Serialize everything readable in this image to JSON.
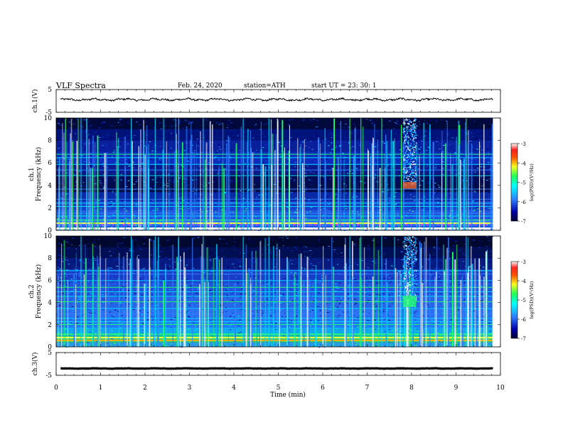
{
  "header": {
    "title": "VLF  Spectra",
    "date": "Feb. 24, 2020",
    "station": "station=ATH",
    "start": "start  UT  =    23: 30: 1"
  },
  "chart_data": [
    {
      "type": "line",
      "panel": "ch1-waveform",
      "ylabel": "ch.1(V)",
      "ylim": [
        -5,
        5
      ],
      "yticks": [
        "5",
        "-5"
      ],
      "xlim": [
        0,
        10
      ],
      "series": [
        {
          "values_level": 0.6,
          "amplitude": 0.6
        }
      ],
      "color": "#000000"
    },
    {
      "type": "heatmap",
      "panel": "ch1-spectrogram",
      "ylabel": "ch.1\nFrequency  (kHz)",
      "ylabel_lines": [
        "ch.1",
        "Frequency  (kHz)"
      ],
      "ylim": [
        0,
        10
      ],
      "yticks": [
        "0",
        "2",
        "4",
        "6",
        "8",
        "10"
      ],
      "xlim": [
        0,
        10
      ],
      "data_end_min": 9.83,
      "burst_time_min": [
        7.8,
        8.1
      ],
      "colorbar": {
        "label": "log(PSD)(V²/Hz)",
        "ticks": [
          "-3",
          "-4",
          "-5",
          "-6",
          "-7"
        ]
      }
    },
    {
      "type": "heatmap",
      "panel": "ch2-spectrogram",
      "ylabel": "ch.2\nFrequency  (kHz)",
      "ylabel_lines": [
        "ch.2",
        "Frequency  (kHz)"
      ],
      "ylim": [
        0,
        10
      ],
      "yticks": [
        "0",
        "2",
        "4",
        "6",
        "8",
        "10"
      ],
      "xlim": [
        0,
        10
      ],
      "data_end_min": 9.83,
      "burst_time_min": [
        7.8,
        8.1
      ],
      "colorbar": {
        "label": "log(PSD)(V²/Hz)",
        "ticks": [
          "-3",
          "-4",
          "-5",
          "-6",
          "-7"
        ]
      }
    },
    {
      "type": "line",
      "panel": "ch3-waveform",
      "ylabel": "ch.3(V)",
      "ylim": [
        -5,
        5
      ],
      "yticks": [
        "5",
        "-5"
      ],
      "xlim": [
        0,
        10
      ],
      "series": [
        {
          "values_level": -2.0,
          "amplitude": 0.1
        }
      ],
      "color": "#000000"
    }
  ],
  "xaxis": {
    "label": "Time  (min)",
    "ticks": [
      "0",
      "1",
      "2",
      "3",
      "4",
      "5",
      "6",
      "7",
      "8",
      "9",
      "10"
    ]
  },
  "colormap": [
    "#000033",
    "#00007a",
    "#0033cc",
    "#2f7fff",
    "#00ddff",
    "#22ff66",
    "#f3ff44",
    "#ffaa00",
    "#ff2200",
    "#ffffff"
  ]
}
